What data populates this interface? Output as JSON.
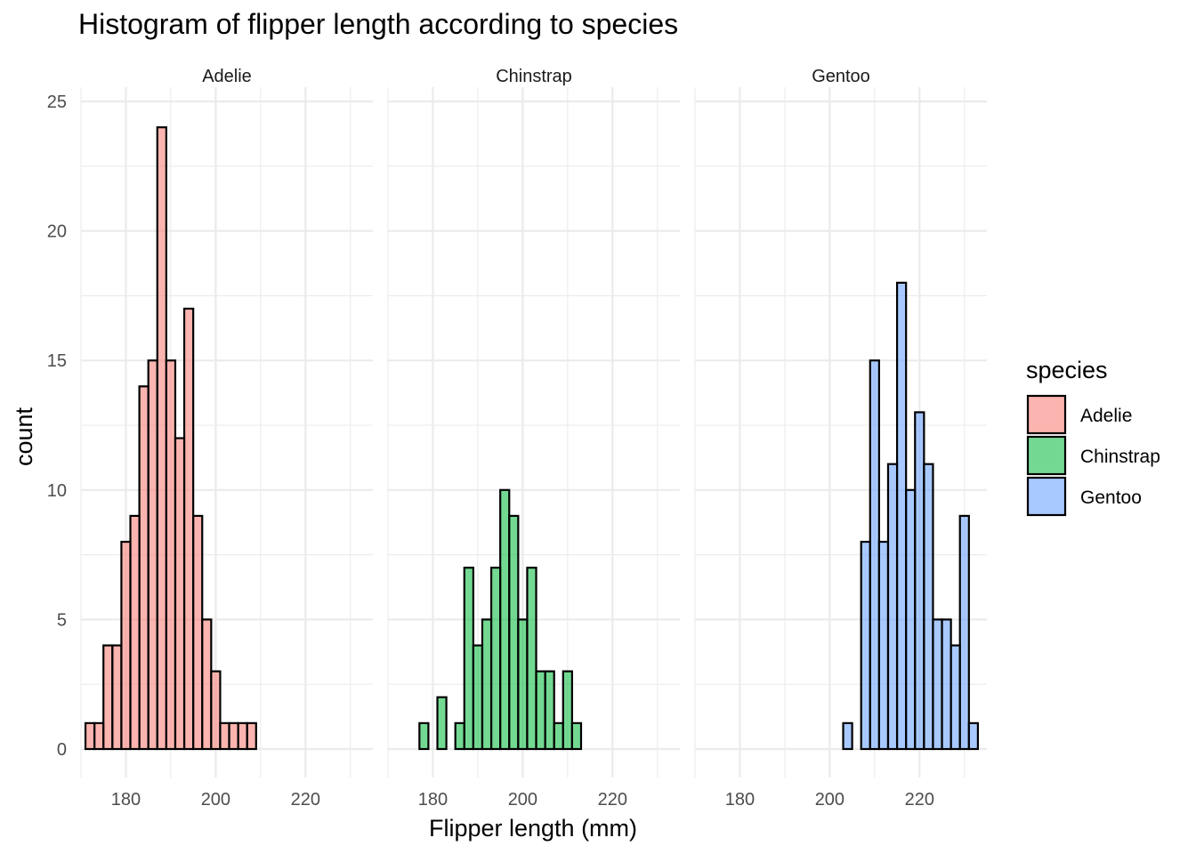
{
  "chart_data": {
    "type": "bar",
    "title": "Histogram of flipper length according to species",
    "xlabel": "Flipper length (mm)",
    "ylabel": "count",
    "xlim": [
      170,
      235
    ],
    "ylim": [
      0,
      25
    ],
    "x_ticks": [
      180,
      200,
      220
    ],
    "y_ticks": [
      0,
      5,
      10,
      15,
      20,
      25
    ],
    "bin_width": 2,
    "first_bin_center": 172,
    "bin_centers": [
      172,
      174,
      176,
      178,
      180,
      182,
      184,
      186,
      188,
      190,
      192,
      194,
      196,
      198,
      200,
      202,
      204,
      206,
      208,
      210,
      212,
      214,
      216,
      218,
      220,
      222,
      224,
      226,
      228,
      230,
      232
    ],
    "grid": true,
    "legend": {
      "title": "species",
      "position": "right",
      "entries": [
        {
          "label": "Adelie",
          "color": "#F8766D"
        },
        {
          "label": "Chinstrap",
          "color": "#00BA38"
        },
        {
          "label": "Gentoo",
          "color": "#619CFF"
        }
      ]
    },
    "panels": [
      {
        "name": "Adelie",
        "color": "#F8766D",
        "values": [
          1,
          1,
          4,
          4,
          8,
          9,
          14,
          15,
          24,
          15,
          12,
          17,
          9,
          5,
          3,
          1,
          1,
          1,
          1,
          0,
          0,
          0,
          0,
          0,
          0,
          0,
          0,
          0,
          0,
          0,
          0
        ]
      },
      {
        "name": "Chinstrap",
        "color": "#00BA38",
        "values": [
          0,
          0,
          0,
          1,
          0,
          2,
          0,
          1,
          7,
          4,
          5,
          7,
          10,
          9,
          5,
          7,
          3,
          3,
          1,
          3,
          1,
          0,
          0,
          0,
          0,
          0,
          0,
          0,
          0,
          0,
          0
        ]
      },
      {
        "name": "Gentoo",
        "color": "#619CFF",
        "values": [
          0,
          0,
          0,
          0,
          0,
          0,
          0,
          0,
          0,
          0,
          0,
          0,
          0,
          0,
          0,
          0,
          1,
          0,
          8,
          15,
          8,
          11,
          18,
          10,
          13,
          11,
          5,
          5,
          4,
          9,
          1
        ]
      }
    ]
  }
}
